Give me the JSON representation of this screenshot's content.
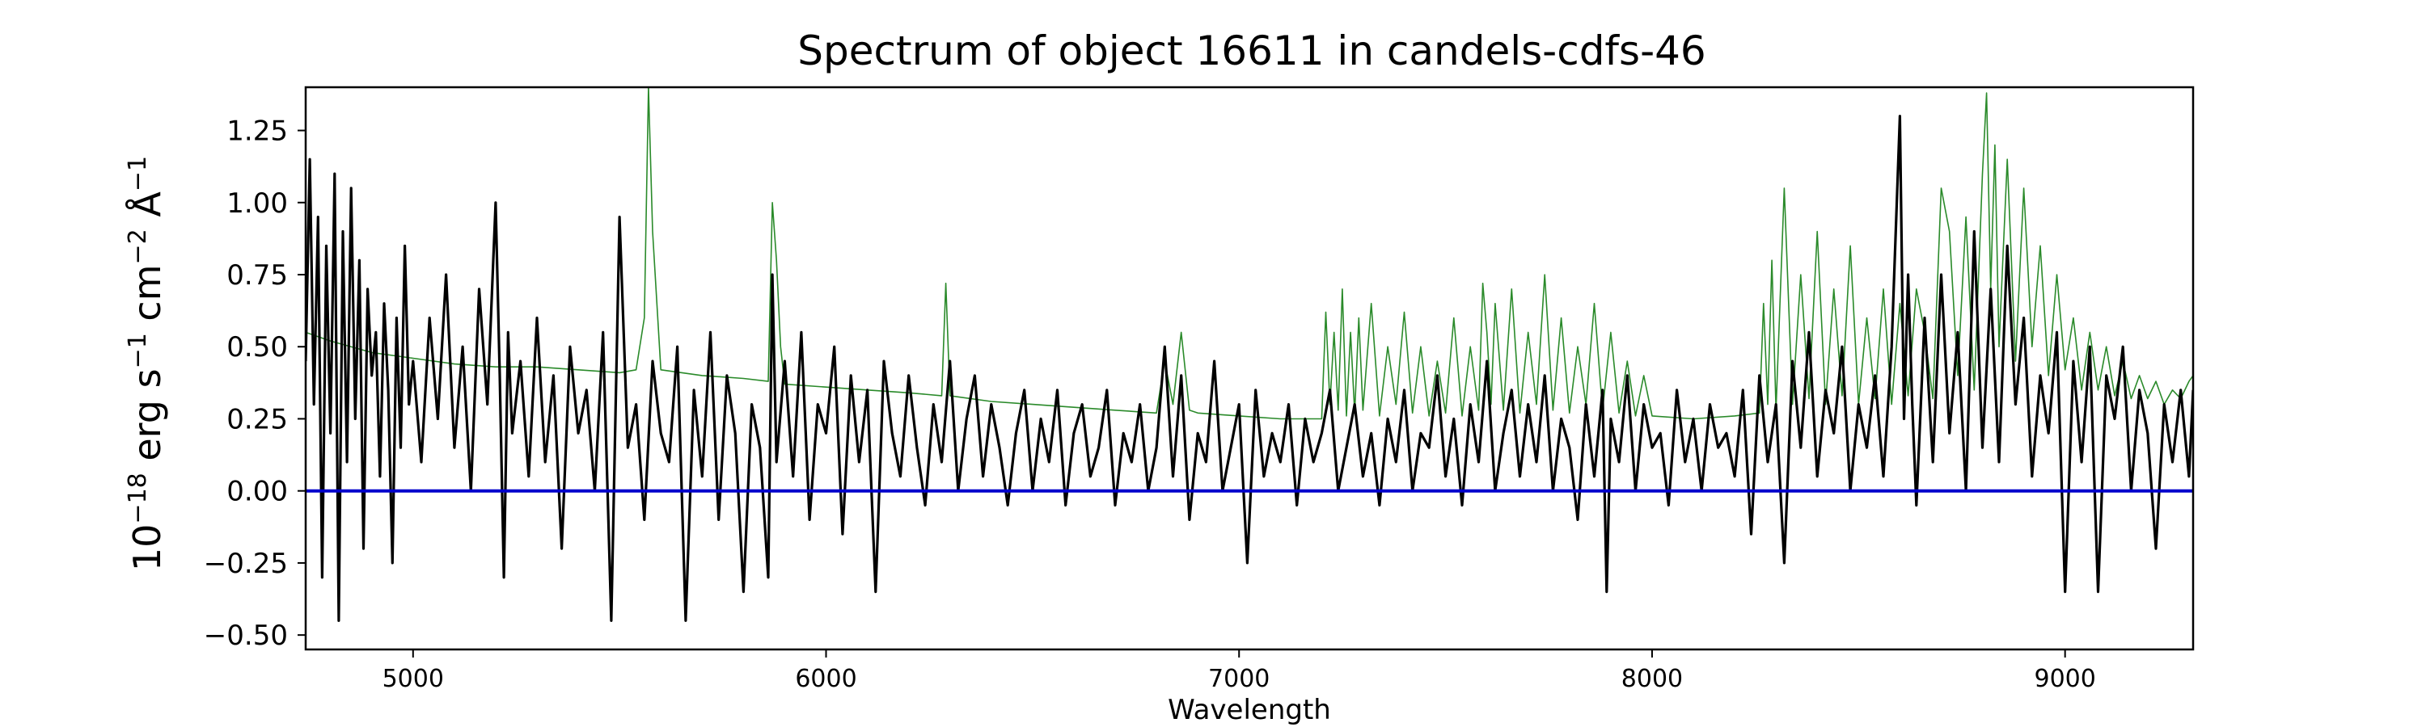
{
  "chart_data": {
    "type": "line",
    "title": "Spectrum of object 16611 in candels-cdfs-46",
    "xlabel": "Wavelength",
    "ylabel": "10^-18 erg s^-1 cm^-2 Å^-1",
    "xlim": [
      4740,
      9310
    ],
    "ylim": [
      -0.55,
      1.4
    ],
    "x_ticks": [
      5000,
      6000,
      7000,
      8000,
      9000
    ],
    "y_ticks": [
      -0.5,
      -0.25,
      0.0,
      0.25,
      0.5,
      0.75,
      1.0,
      1.25
    ],
    "x_tick_labels": [
      "5000",
      "6000",
      "7000",
      "8000",
      "9000"
    ],
    "y_tick_labels": [
      "−0.50",
      "−0.25",
      "0.00",
      "0.25",
      "0.50",
      "0.75",
      "1.00",
      "1.25"
    ],
    "grid": false,
    "legend": "none",
    "colors": {
      "flux": "#000000",
      "error": "#2a8a2a",
      "zero": "#0000cc"
    },
    "series": [
      {
        "role": "flux",
        "x": [
          4740,
          4750,
          4760,
          4770,
          4780,
          4790,
          4800,
          4810,
          4820,
          4830,
          4840,
          4850,
          4860,
          4870,
          4880,
          4890,
          4900,
          4910,
          4920,
          4930,
          4940,
          4950,
          4960,
          4970,
          4980,
          4990,
          5000,
          5020,
          5040,
          5060,
          5080,
          5100,
          5120,
          5140,
          5160,
          5180,
          5200,
          5210,
          5220,
          5230,
          5240,
          5260,
          5280,
          5300,
          5320,
          5340,
          5360,
          5380,
          5400,
          5420,
          5440,
          5460,
          5480,
          5500,
          5520,
          5540,
          5560,
          5580,
          5600,
          5620,
          5640,
          5660,
          5680,
          5700,
          5720,
          5740,
          5760,
          5780,
          5800,
          5820,
          5840,
          5860,
          5870,
          5880,
          5900,
          5920,
          5940,
          5960,
          5980,
          6000,
          6020,
          6040,
          6060,
          6080,
          6100,
          6120,
          6140,
          6160,
          6180,
          6200,
          6220,
          6240,
          6260,
          6280,
          6300,
          6320,
          6340,
          6360,
          6380,
          6400,
          6420,
          6440,
          6460,
          6480,
          6500,
          6520,
          6540,
          6560,
          6580,
          6600,
          6620,
          6640,
          6660,
          6680,
          6700,
          6720,
          6740,
          6760,
          6780,
          6800,
          6820,
          6840,
          6860,
          6880,
          6900,
          6920,
          6940,
          6960,
          6980,
          7000,
          7020,
          7040,
          7060,
          7080,
          7100,
          7120,
          7140,
          7160,
          7180,
          7200,
          7220,
          7240,
          7260,
          7280,
          7300,
          7320,
          7340,
          7360,
          7380,
          7400,
          7420,
          7440,
          7460,
          7480,
          7500,
          7520,
          7540,
          7560,
          7580,
          7600,
          7620,
          7640,
          7660,
          7680,
          7700,
          7720,
          7740,
          7760,
          7780,
          7800,
          7820,
          7840,
          7860,
          7880,
          7890,
          7900,
          7920,
          7940,
          7960,
          7980,
          8000,
          8020,
          8040,
          8060,
          8080,
          8100,
          8120,
          8140,
          8160,
          8180,
          8200,
          8220,
          8240,
          8260,
          8280,
          8300,
          8320,
          8340,
          8360,
          8380,
          8400,
          8420,
          8440,
          8460,
          8480,
          8500,
          8520,
          8540,
          8560,
          8580,
          8600,
          8610,
          8620,
          8630,
          8640,
          8660,
          8680,
          8700,
          8720,
          8740,
          8760,
          8780,
          8800,
          8820,
          8840,
          8860,
          8880,
          8900,
          8920,
          8940,
          8960,
          8980,
          9000,
          9020,
          9040,
          9060,
          9080,
          9100,
          9120,
          9140,
          9160,
          9180,
          9200,
          9220,
          9240,
          9260,
          9280,
          9300,
          9310
        ],
        "y": [
          0.45,
          1.15,
          0.3,
          0.95,
          -0.3,
          0.85,
          0.2,
          1.1,
          -0.45,
          0.9,
          0.1,
          1.05,
          0.25,
          0.8,
          -0.2,
          0.7,
          0.4,
          0.55,
          0.05,
          0.65,
          0.35,
          -0.25,
          0.6,
          0.15,
          0.85,
          0.3,
          0.45,
          0.1,
          0.6,
          0.25,
          0.75,
          0.15,
          0.5,
          0.0,
          0.7,
          0.3,
          1.0,
          0.4,
          -0.3,
          0.55,
          0.2,
          0.45,
          0.05,
          0.6,
          0.1,
          0.4,
          -0.2,
          0.5,
          0.2,
          0.35,
          0.0,
          0.55,
          -0.45,
          0.95,
          0.15,
          0.3,
          -0.1,
          0.45,
          0.2,
          0.1,
          0.5,
          -0.45,
          0.35,
          0.05,
          0.55,
          -0.1,
          0.4,
          0.2,
          -0.35,
          0.3,
          0.15,
          -0.3,
          0.75,
          0.1,
          0.45,
          0.05,
          0.55,
          -0.1,
          0.3,
          0.2,
          0.5,
          -0.15,
          0.4,
          0.1,
          0.35,
          -0.35,
          0.45,
          0.2,
          0.05,
          0.4,
          0.15,
          -0.05,
          0.3,
          0.1,
          0.45,
          0.0,
          0.25,
          0.4,
          0.05,
          0.3,
          0.15,
          -0.05,
          0.2,
          0.35,
          0.0,
          0.25,
          0.1,
          0.35,
          -0.05,
          0.2,
          0.3,
          0.05,
          0.15,
          0.35,
          -0.05,
          0.2,
          0.1,
          0.3,
          0.0,
          0.15,
          0.5,
          0.05,
          0.4,
          -0.1,
          0.2,
          0.1,
          0.45,
          0.0,
          0.15,
          0.3,
          -0.25,
          0.35,
          0.05,
          0.2,
          0.1,
          0.3,
          -0.05,
          0.25,
          0.1,
          0.2,
          0.35,
          0.0,
          0.15,
          0.3,
          0.05,
          0.2,
          -0.05,
          0.25,
          0.1,
          0.35,
          0.0,
          0.2,
          0.15,
          0.4,
          0.05,
          0.25,
          -0.05,
          0.3,
          0.1,
          0.45,
          0.0,
          0.2,
          0.35,
          0.05,
          0.3,
          0.1,
          0.4,
          0.0,
          0.25,
          0.15,
          -0.1,
          0.3,
          0.05,
          0.35,
          -0.35,
          0.25,
          0.1,
          0.4,
          0.0,
          0.3,
          0.15,
          0.2,
          -0.05,
          0.35,
          0.1,
          0.25,
          0.0,
          0.3,
          0.15,
          0.2,
          0.05,
          0.35,
          -0.15,
          0.4,
          0.1,
          0.3,
          -0.25,
          0.45,
          0.15,
          0.55,
          0.05,
          0.35,
          0.2,
          0.5,
          0.0,
          0.3,
          0.15,
          0.4,
          0.05,
          0.5,
          1.3,
          0.25,
          0.75,
          0.3,
          -0.05,
          0.6,
          0.1,
          0.75,
          0.2,
          0.55,
          0.0,
          0.9,
          0.15,
          0.7,
          0.1,
          0.85,
          0.3,
          0.6,
          0.05,
          0.4,
          0.2,
          0.55,
          -0.35,
          0.45,
          0.1,
          0.5,
          -0.35,
          0.4,
          0.25,
          0.5,
          0.0,
          0.35,
          0.2,
          -0.2,
          0.3,
          0.1,
          0.35,
          0.05,
          0.35
        ],
        "name": ""
      },
      {
        "role": "error",
        "x": [
          4740,
          4800,
          4900,
          5000,
          5100,
          5200,
          5300,
          5400,
          5500,
          5540,
          5560,
          5570,
          5580,
          5600,
          5700,
          5800,
          5860,
          5870,
          5880,
          5890,
          5900,
          6000,
          6100,
          6200,
          6280,
          6290,
          6300,
          6400,
          6500,
          6600,
          6700,
          6800,
          6820,
          6840,
          6860,
          6880,
          6900,
          7000,
          7100,
          7200,
          7210,
          7220,
          7230,
          7240,
          7250,
          7260,
          7270,
          7280,
          7290,
          7300,
          7320,
          7340,
          7360,
          7380,
          7400,
          7420,
          7440,
          7460,
          7480,
          7500,
          7520,
          7540,
          7560,
          7580,
          7590,
          7600,
          7610,
          7620,
          7640,
          7660,
          7680,
          7700,
          7720,
          7740,
          7760,
          7780,
          7800,
          7820,
          7840,
          7860,
          7880,
          7900,
          7920,
          7940,
          7960,
          7980,
          8000,
          8100,
          8200,
          8260,
          8270,
          8280,
          8290,
          8300,
          8320,
          8340,
          8360,
          8380,
          8400,
          8420,
          8440,
          8460,
          8480,
          8500,
          8520,
          8540,
          8560,
          8580,
          8600,
          8620,
          8640,
          8660,
          8680,
          8700,
          8720,
          8740,
          8760,
          8780,
          8800,
          8810,
          8820,
          8830,
          8840,
          8860,
          8880,
          8900,
          8920,
          8940,
          8960,
          8980,
          9000,
          9020,
          9040,
          9060,
          9080,
          9100,
          9120,
          9140,
          9160,
          9180,
          9200,
          9220,
          9240,
          9260,
          9280,
          9300,
          9310
        ],
        "y": [
          0.55,
          0.52,
          0.48,
          0.46,
          0.44,
          0.43,
          0.43,
          0.42,
          0.41,
          0.42,
          0.6,
          1.4,
          0.9,
          0.42,
          0.4,
          0.39,
          0.38,
          1.0,
          0.8,
          0.5,
          0.37,
          0.36,
          0.35,
          0.34,
          0.33,
          0.72,
          0.33,
          0.31,
          0.3,
          0.29,
          0.28,
          0.27,
          0.45,
          0.3,
          0.55,
          0.28,
          0.27,
          0.26,
          0.25,
          0.25,
          0.62,
          0.3,
          0.55,
          0.28,
          0.7,
          0.26,
          0.55,
          0.27,
          0.6,
          0.28,
          0.65,
          0.26,
          0.5,
          0.3,
          0.62,
          0.27,
          0.5,
          0.26,
          0.45,
          0.27,
          0.6,
          0.26,
          0.5,
          0.28,
          0.72,
          0.55,
          0.3,
          0.65,
          0.28,
          0.7,
          0.27,
          0.55,
          0.3,
          0.75,
          0.28,
          0.6,
          0.27,
          0.5,
          0.3,
          0.65,
          0.28,
          0.55,
          0.27,
          0.45,
          0.26,
          0.4,
          0.26,
          0.25,
          0.26,
          0.27,
          0.65,
          0.3,
          0.8,
          0.28,
          1.05,
          0.3,
          0.75,
          0.32,
          0.9,
          0.3,
          0.7,
          0.33,
          0.85,
          0.3,
          0.6,
          0.32,
          0.7,
          0.3,
          0.65,
          0.33,
          0.7,
          0.55,
          0.32,
          1.05,
          0.9,
          0.4,
          0.95,
          0.35,
          1.1,
          1.38,
          0.7,
          1.2,
          0.5,
          1.15,
          0.45,
          1.05,
          0.5,
          0.85,
          0.4,
          0.75,
          0.42,
          0.6,
          0.35,
          0.55,
          0.35,
          0.5,
          0.33,
          0.45,
          0.32,
          0.4,
          0.32,
          0.38,
          0.3,
          0.35,
          0.32,
          0.38,
          0.4
        ],
        "name": ""
      },
      {
        "role": "zero",
        "x": [
          4740,
          9310
        ],
        "y": [
          0.0,
          0.0
        ],
        "name": ""
      }
    ]
  }
}
